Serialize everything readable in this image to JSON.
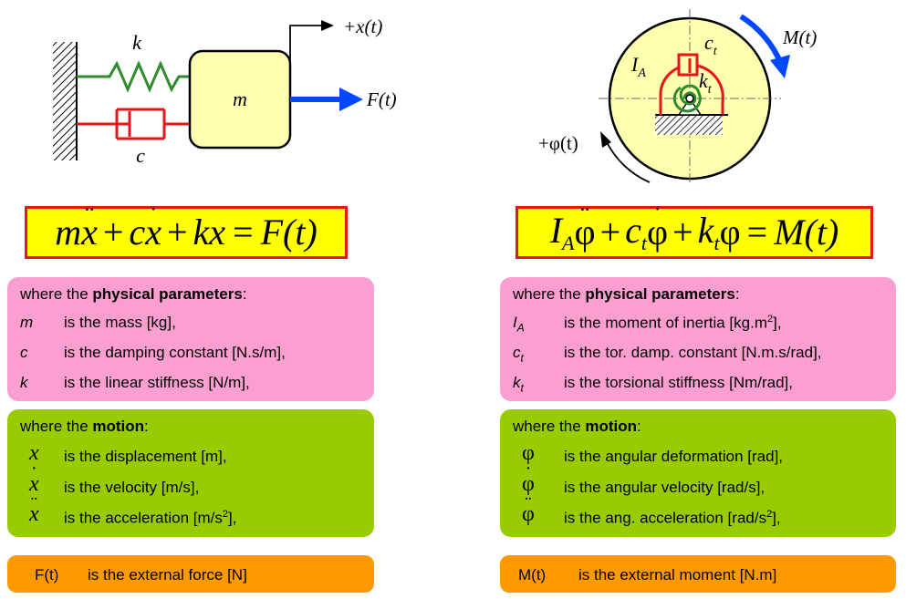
{
  "left": {
    "diagram": {
      "k": "k",
      "c": "c",
      "m": "m",
      "x": "+x(t)",
      "force": "F(t)"
    },
    "equation": {
      "a": "m",
      "b": "x",
      "plus1": "+",
      "c": "c",
      "d": "x",
      "plus2": "+",
      "e": "kx",
      "eq": "=",
      "f": "F",
      "paren": "(t)"
    },
    "params": {
      "header_pre": "where the ",
      "header_bold": "physical parameters",
      "header_post": ":",
      "rows": [
        {
          "sym": "m",
          "text": "is the mass [kg],"
        },
        {
          "sym": "c",
          "text": "is the damping constant [N.s/m],"
        },
        {
          "sym": "k",
          "text": "is the linear stiffness [N/m],"
        }
      ]
    },
    "motion": {
      "header_pre": "where the ",
      "header_bold": "motion",
      "header_post": ":",
      "rows": [
        {
          "sym": "x",
          "text": "is the displacement [m],"
        },
        {
          "sym": "x",
          "text": "is the velocity [m/s],"
        },
        {
          "sym": "x",
          "text": "is the acceleration [m/s",
          "sup": "2",
          "post": "],"
        }
      ]
    },
    "external": {
      "sym": "F(t)",
      "text": "is the external force [N]"
    }
  },
  "right": {
    "diagram": {
      "ia": "I",
      "ia_sub": "A",
      "ct": "c",
      "ct_sub": "t",
      "kt": "k",
      "kt_sub": "t",
      "moment": "M(t)",
      "phi": "+φ(t)"
    },
    "equation": {
      "a": "I",
      "a_sub": "A",
      "b": "φ",
      "plus1": "+",
      "c": "c",
      "c_sub": "t",
      "d": "φ",
      "plus2": "+",
      "e": "k",
      "e_sub": "t",
      "f": "φ",
      "eq": "=",
      "g": "M",
      "paren": "(t)"
    },
    "params": {
      "header_pre": "where the ",
      "header_bold": "physical parameters",
      "header_post": ":",
      "rows": [
        {
          "sym": "I",
          "sub": "A",
          "text": "is the moment of inertia [kg.m",
          "sup": "2",
          "post": "],"
        },
        {
          "sym": "c",
          "sub": "t",
          "text": "is the tor. damp. constant [N.m.s/rad],"
        },
        {
          "sym": "k",
          "sub": "t",
          "text": "is the torsional stiffness [Nm/rad],"
        }
      ]
    },
    "motion": {
      "header_pre": "where the ",
      "header_bold": "motion",
      "header_post": ":",
      "rows": [
        {
          "sym": "φ",
          "text": "is the angular deformation [rad],"
        },
        {
          "sym": "φ",
          "text": "is the angular velocity [rad/s],"
        },
        {
          "sym": "φ",
          "text": "is the ang. acceleration [rad/s",
          "sup": "2",
          "post": "],"
        }
      ]
    },
    "external": {
      "sym": "M(t)",
      "text": "is the external moment [N.m]"
    }
  },
  "colors": {
    "box_pink": "#fa9fd0",
    "box_green": "#99cc00",
    "box_orange": "#ff9900",
    "equation_bg": "#ffff00",
    "equation_border": "#e8141b",
    "spring": "#2e8b2e",
    "damper": "#e8141b",
    "force_arrow": "#0047ff",
    "mass": "#ffffb0"
  }
}
